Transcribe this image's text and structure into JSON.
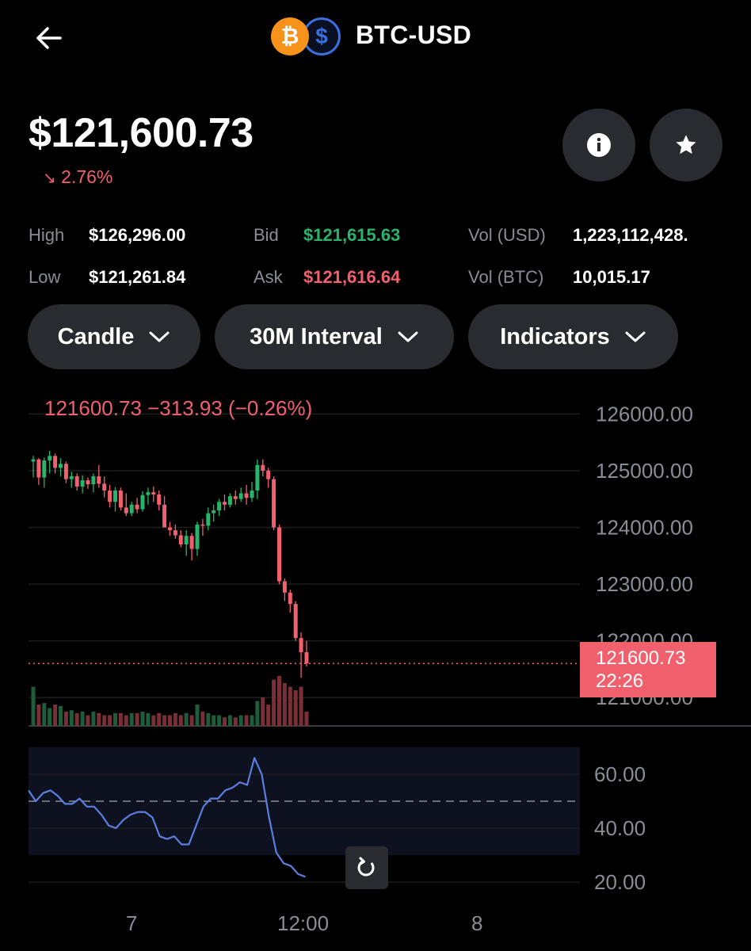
{
  "header": {
    "title": "BTC-USD",
    "icons": [
      "back-arrow-icon",
      "bitcoin-icon",
      "usd-coin-icon"
    ]
  },
  "price": {
    "value": "$121,600.73",
    "change": "2.76%",
    "change_direction": "down"
  },
  "actions": {
    "info": "info-icon",
    "favorite": "star-icon"
  },
  "stats": {
    "high_label": "High",
    "high": "$126,296.00",
    "low_label": "Low",
    "low": "$121,261.84",
    "bid_label": "Bid",
    "bid": "$121,615.63",
    "ask_label": "Ask",
    "ask": "$121,616.64",
    "vol_usd_label": "Vol (USD)",
    "vol_usd": "1,223,112,428.",
    "vol_btc_label": "Vol (BTC)",
    "vol_btc": "10,015.17"
  },
  "controls": {
    "chart_type": "Candle",
    "interval": "30M Interval",
    "indicators": "Indicators"
  },
  "colors": {
    "up": "#29b46c",
    "down": "#f0616d",
    "rsi": "#5b7fe0",
    "bg": "#000000"
  },
  "chart_data": [
    {
      "type": "candlestick",
      "ohlc_readout": "121600.73  −313.93 (−0.26%)",
      "y_ticks": [
        "126000.00",
        "125000.00",
        "124000.00",
        "123000.00",
        "122000.00",
        "121000.00"
      ],
      "ylim": [
        120500,
        126200
      ],
      "x_ticks": [
        "7",
        "12:00",
        "8"
      ],
      "current_price_label": "121600.73",
      "countdown": "22:26",
      "current_price": 121600.73,
      "candles": [
        [
          125160,
          125260,
          124880,
          125200
        ],
        [
          125200,
          125220,
          124750,
          124880
        ],
        [
          124880,
          125230,
          124700,
          125180
        ],
        [
          125180,
          125350,
          124950,
          125260
        ],
        [
          125260,
          125300,
          124950,
          125050
        ],
        [
          125050,
          125220,
          124900,
          125120
        ],
        [
          125120,
          125160,
          124780,
          124850
        ],
        [
          124850,
          124980,
          124700,
          124900
        ],
        [
          124900,
          124950,
          124650,
          124720
        ],
        [
          124720,
          124920,
          124600,
          124830
        ],
        [
          124830,
          124880,
          124680,
          124760
        ],
        [
          124760,
          124950,
          124620,
          124900
        ],
        [
          124900,
          125100,
          124700,
          124770
        ],
        [
          124770,
          124900,
          124530,
          124650
        ],
        [
          124650,
          124750,
          124350,
          124450
        ],
        [
          124450,
          124710,
          124280,
          124650
        ],
        [
          124650,
          124700,
          124300,
          124350
        ],
        [
          124350,
          124600,
          124200,
          124250
        ],
        [
          124250,
          124450,
          124200,
          124400
        ],
        [
          124400,
          124520,
          124250,
          124320
        ],
        [
          124320,
          124640,
          124280,
          124570
        ],
        [
          124570,
          124700,
          124400,
          124620
        ],
        [
          124620,
          124720,
          124450,
          124580
        ],
        [
          124580,
          124650,
          124300,
          124400
        ],
        [
          124400,
          124550,
          124000,
          124000
        ],
        [
          124000,
          124100,
          123850,
          123950
        ],
        [
          123950,
          124050,
          123800,
          123860
        ],
        [
          123860,
          123950,
          123650,
          123700
        ],
        [
          123700,
          123950,
          123500,
          123850
        ],
        [
          123850,
          123900,
          123420,
          123620
        ],
        [
          123620,
          124100,
          123500,
          124050
        ],
        [
          124050,
          124150,
          123850,
          124030
        ],
        [
          124030,
          124350,
          123950,
          124250
        ],
        [
          124250,
          124400,
          124100,
          124300
        ],
        [
          124300,
          124500,
          124200,
          124450
        ],
        [
          124450,
          124580,
          124300,
          124400
        ],
        [
          124400,
          124600,
          124350,
          124550
        ],
        [
          124550,
          124650,
          124400,
          124500
        ],
        [
          124500,
          124700,
          124450,
          124600
        ],
        [
          124600,
          124750,
          124400,
          124520
        ],
        [
          124520,
          124800,
          124450,
          124650
        ],
        [
          124650,
          125200,
          124500,
          125100
        ],
        [
          125100,
          125200,
          124900,
          125000
        ],
        [
          125000,
          125050,
          124700,
          124850
        ],
        [
          124850,
          124900,
          123950,
          124000
        ],
        [
          124000,
          124050,
          123000,
          123050
        ],
        [
          123050,
          123100,
          122700,
          122850
        ],
        [
          122850,
          122900,
          122500,
          122650
        ],
        [
          122650,
          122700,
          122000,
          122050
        ],
        [
          122050,
          122150,
          121350,
          121800
        ],
        [
          121800,
          122000,
          121550,
          121600.73
        ]
      ],
      "volume": [
        0.55,
        0.3,
        0.32,
        0.25,
        0.3,
        0.28,
        0.2,
        0.22,
        0.18,
        0.2,
        0.15,
        0.2,
        0.18,
        0.15,
        0.15,
        0.18,
        0.18,
        0.15,
        0.18,
        0.18,
        0.2,
        0.18,
        0.15,
        0.18,
        0.15,
        0.15,
        0.18,
        0.15,
        0.18,
        0.15,
        0.3,
        0.2,
        0.18,
        0.15,
        0.15,
        0.12,
        0.15,
        0.12,
        0.15,
        0.15,
        0.15,
        0.35,
        0.4,
        0.3,
        0.65,
        0.7,
        0.6,
        0.55,
        0.5,
        0.55,
        0.2
      ]
    },
    {
      "type": "line",
      "indicator": "RSI",
      "y_ticks": [
        "60.00",
        "40.00",
        "20.00"
      ],
      "ylim": [
        18,
        72
      ],
      "band": [
        30,
        70
      ],
      "midline": 50,
      "values": [
        54,
        50,
        53,
        54,
        52,
        49,
        49,
        51,
        48,
        48,
        45,
        41,
        40,
        43,
        45,
        46,
        46,
        44,
        37,
        36,
        37,
        34,
        34,
        41,
        48,
        51,
        51,
        54,
        55,
        57,
        56,
        66,
        60,
        44,
        31,
        27,
        26,
        23,
        22
      ]
    }
  ]
}
